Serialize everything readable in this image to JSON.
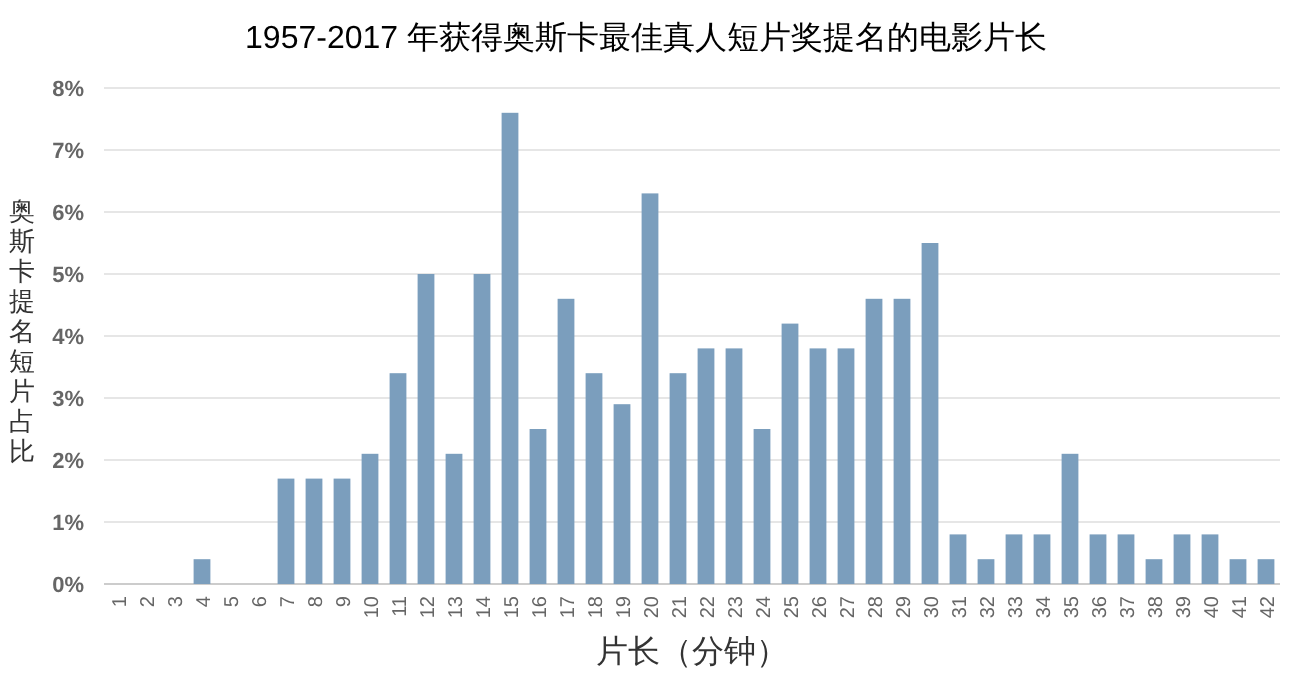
{
  "chart_data": {
    "type": "bar",
    "title": "1957-2017 年获得奥斯卡最佳真人短片奖提名的电影片长",
    "xlabel": "片长（分钟）",
    "ylabel": "奥斯卡提名短片占比",
    "categories": [
      "1",
      "2",
      "3",
      "4",
      "5",
      "6",
      "7",
      "8",
      "9",
      "10",
      "11",
      "12",
      "13",
      "14",
      "15",
      "16",
      "17",
      "18",
      "19",
      "20",
      "21",
      "22",
      "23",
      "24",
      "25",
      "26",
      "27",
      "28",
      "29",
      "30",
      "31",
      "32",
      "33",
      "34",
      "35",
      "36",
      "37",
      "38",
      "39",
      "40",
      "41",
      "42"
    ],
    "values": [
      0,
      0,
      0,
      0.4,
      0,
      0,
      1.7,
      1.7,
      1.7,
      2.1,
      3.4,
      5.0,
      2.1,
      5.0,
      7.6,
      2.5,
      4.6,
      3.4,
      2.9,
      6.3,
      3.4,
      3.8,
      3.8,
      2.5,
      4.2,
      3.8,
      3.8,
      4.6,
      4.6,
      5.5,
      0.8,
      0.4,
      0.8,
      0.8,
      2.1,
      0.8,
      0.8,
      0.4,
      0.8,
      0.8,
      0.4,
      0.4
    ],
    "color": "#7b9ebd",
    "ylim": [
      0,
      8
    ],
    "yticks": [
      {
        "value": 0,
        "label": "0%"
      },
      {
        "value": 1,
        "label": "1%"
      },
      {
        "value": 2,
        "label": "2%"
      },
      {
        "value": 3,
        "label": "3%"
      },
      {
        "value": 4,
        "label": "4%"
      },
      {
        "value": 5,
        "label": "5%"
      },
      {
        "value": 6,
        "label": "6%"
      },
      {
        "value": 7,
        "label": "7%"
      },
      {
        "value": 8,
        "label": "8%"
      }
    ],
    "grid": "y"
  }
}
